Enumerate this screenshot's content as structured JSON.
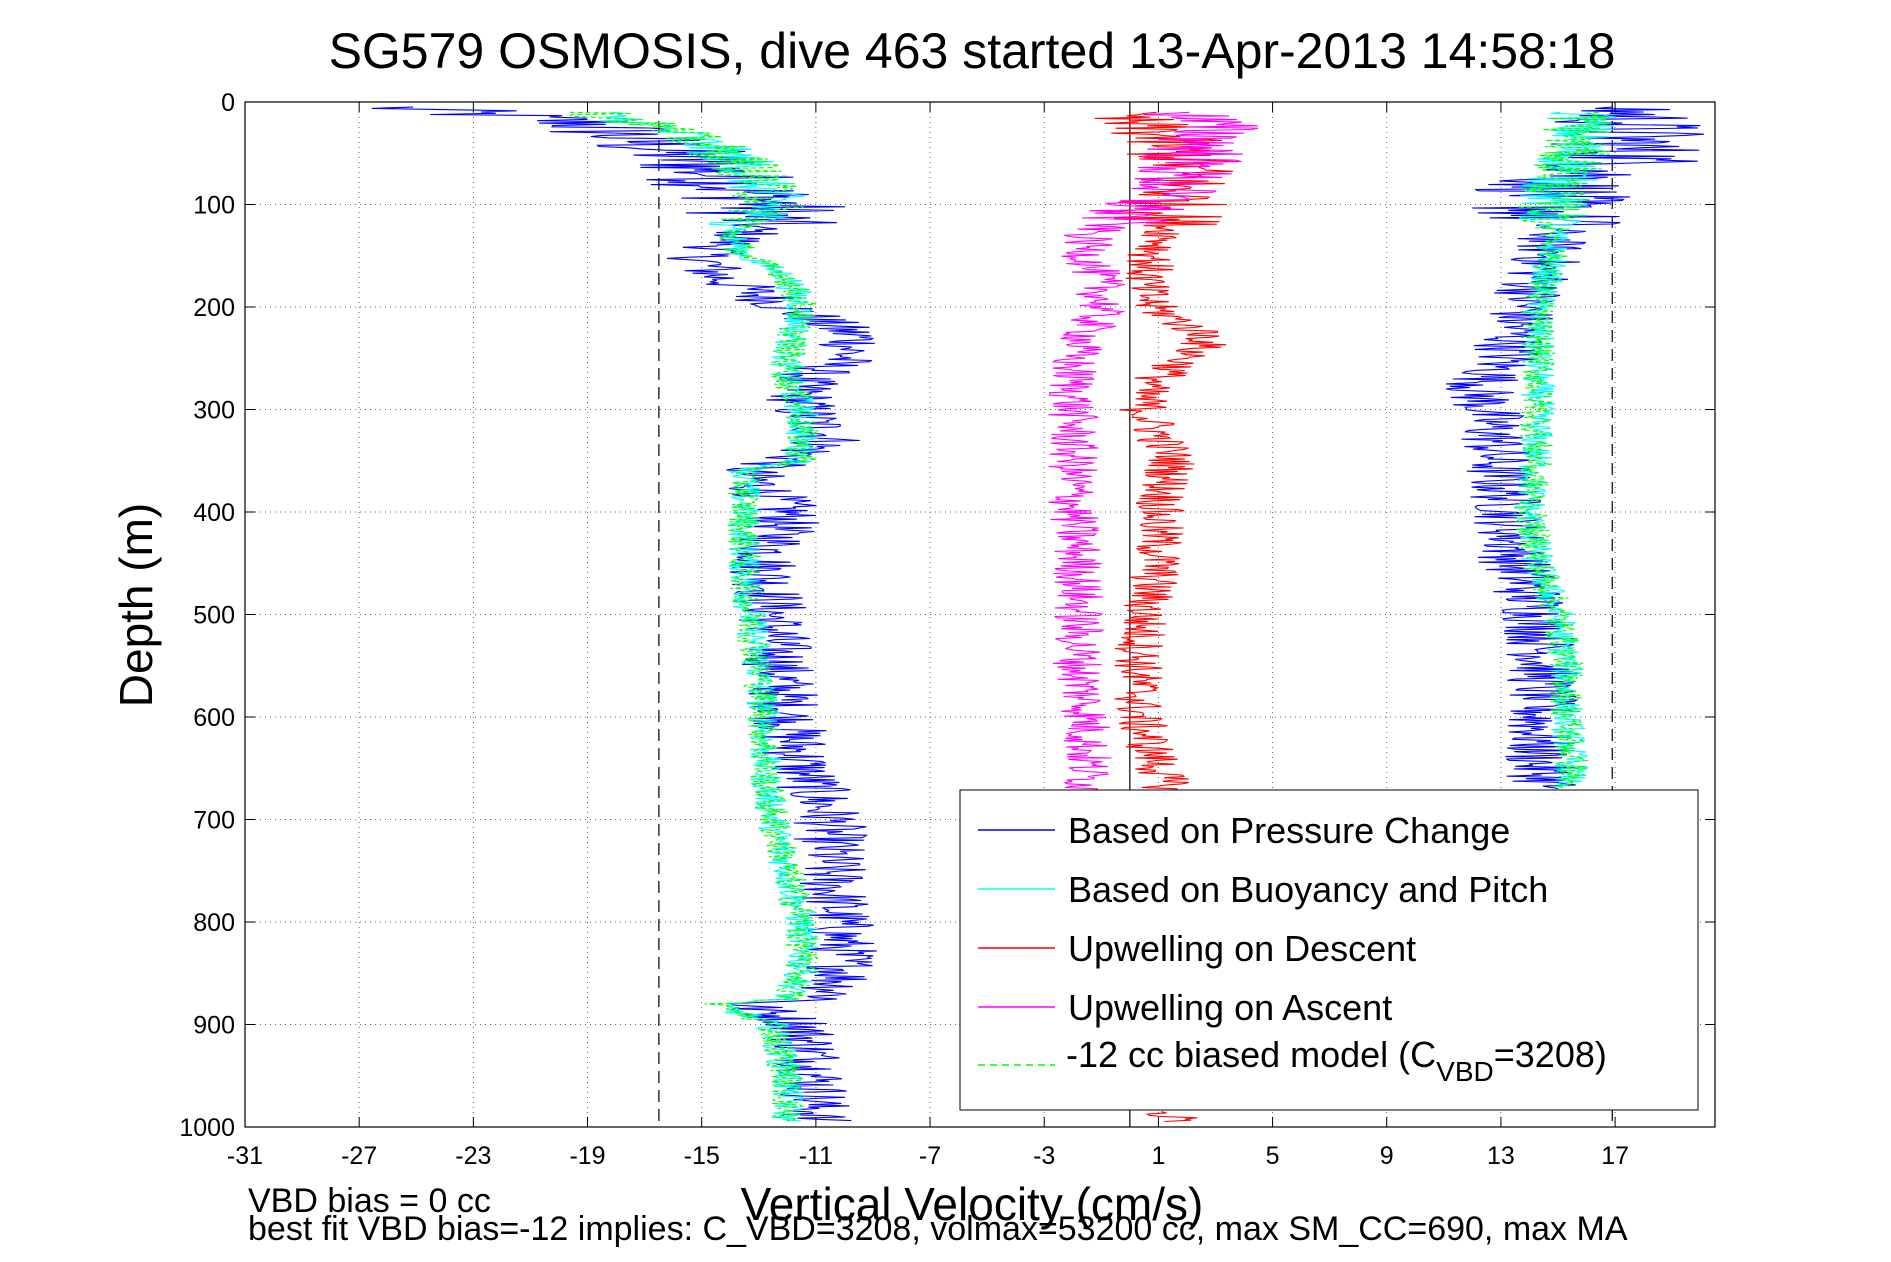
{
  "chart_data": {
    "type": "line",
    "title": "SG579 OSMOSIS, dive 463 started 13-Apr-2013 14:58:18",
    "xlabel": "Vertical Velocity (cm/s)",
    "ylabel": "Depth (m)",
    "xlim": [
      -31,
      20.5
    ],
    "ylim": [
      0,
      1000
    ],
    "y_reversed": true,
    "grid": true,
    "legend_position": "lower-right",
    "x_ticks": [
      "-31",
      "-27",
      "-23",
      "-19",
      "-15",
      "-11",
      "-7",
      "-3",
      "1",
      "5",
      "9",
      "13",
      "17"
    ],
    "y_ticks": [
      "0",
      "100",
      "200",
      "300",
      "400",
      "500",
      "600",
      "700",
      "800",
      "900",
      "1000"
    ],
    "vertical_reference_lines": [
      {
        "x": -16.5,
        "style": "dashed",
        "color": "#000000"
      },
      {
        "x": 16.9,
        "style": "dashed",
        "color": "#000000"
      },
      {
        "x": 0,
        "style": "solid",
        "color": "#000000"
      }
    ],
    "legend": [
      {
        "label": "Based on Pressure Change",
        "color": "#0000ff",
        "style": "solid"
      },
      {
        "label": "Based on Buoyancy and Pitch",
        "color": "#00ffff",
        "style": "solid"
      },
      {
        "label": "Upwelling on Descent",
        "color": "#ff0000",
        "style": "solid"
      },
      {
        "label": "Upwelling on Ascent",
        "color": "#ff00ff",
        "style": "solid"
      },
      {
        "label_main": "-12 cc biased model (C",
        "label_sub": "VBD",
        "label_tail": "=3208)",
        "color": "#00ff00",
        "style": "dashed"
      }
    ],
    "series": [
      {
        "name": "Based on Pressure Change",
        "color": "#0000ff",
        "noise": 1.3,
        "segments": [
          {
            "depth": [
              5,
              20,
              40,
              60,
              80,
              100,
              130,
              150,
              170,
              200,
              230,
              250,
              270,
              300,
              330,
              350,
              360,
              400,
              450,
              500,
              550,
              600,
              650,
              700,
              750,
              800,
              850,
              875,
              880,
              900,
              950,
              995
            ],
            "vel": [
              -26,
              -19,
              -17,
              -15,
              -14,
              -12.5,
              -13.5,
              -15,
              -14.5,
              -12,
              -9.5,
              -10,
              -11.5,
              -11.5,
              -10.5,
              -12,
              -13.5,
              -12,
              -12.8,
              -12.5,
              -12.3,
              -12,
              -11.5,
              -10.5,
              -10.5,
              -10.2,
              -10,
              -10.5,
              -13.5,
              -11.5,
              -11,
              -11
            ]
          },
          {
            "depth": [
              5,
              20,
              40,
              60,
              80,
              100,
              130,
              160,
              200,
              250,
              280,
              300,
              330,
              350,
              400,
              450,
              500,
              550,
              600,
              650,
              670
            ],
            "vel": [
              17.5,
              17.5,
              17.5,
              17.5,
              15,
              14.5,
              14.8,
              14.5,
              13.8,
              13.2,
              12.2,
              12.5,
              12.8,
              12.8,
              13.3,
              13.5,
              14.3,
              14.5,
              14.3,
              14.3,
              14.8
            ]
          }
        ]
      },
      {
        "name": "Based on Buoyancy and Pitch",
        "color": "#00ffff",
        "noise": 0.6,
        "segments": [
          {
            "depth": [
              10,
              20,
              40,
              60,
              80,
              100,
              130,
              150,
              170,
              200,
              250,
              270,
              300,
              330,
              350,
              360,
              400,
              450,
              500,
              550,
              600,
              650,
              700,
              750,
              800,
              850,
              875,
              880,
              900,
              950,
              995
            ],
            "vel": [
              -19,
              -17,
              -15,
              -13.5,
              -13,
              -12.5,
              -14,
              -13.5,
              -12,
              -11.5,
              -12,
              -12,
              -11.5,
              -11.5,
              -11.5,
              -13.5,
              -13.5,
              -13.5,
              -13.3,
              -13,
              -12.8,
              -12.8,
              -12.5,
              -12,
              -11.5,
              -11.5,
              -12,
              -14.5,
              -12.5,
              -12,
              -12
            ]
          },
          {
            "depth": [
              10,
              40,
              60,
              80,
              100,
              150,
              200,
              250,
              300,
              350,
              400,
              450,
              500,
              550,
              600,
              650,
              670
            ],
            "vel": [
              16,
              15.5,
              15.5,
              15,
              14.8,
              14.8,
              14.3,
              14.3,
              14.3,
              14.2,
              14,
              14.3,
              15,
              15.3,
              15.3,
              15.5,
              15.3
            ]
          }
        ]
      },
      {
        "name": "Upwelling on Descent",
        "color": "#ff0000",
        "noise": 0.9,
        "segments": [
          {
            "depth": [
              10,
              30,
              60,
              100,
              130,
              150,
              180,
              200,
              230,
              250,
              280,
              300,
              350,
              400,
              450,
              500,
              550,
              600,
              650,
              680
            ],
            "vel": [
              -1,
              1,
              2,
              1.5,
              1.3,
              0.8,
              0.5,
              0.8,
              2.8,
              2,
              0.5,
              0.5,
              1.5,
              1,
              1,
              0.5,
              0.3,
              0.3,
              1,
              1.5
            ]
          },
          {
            "depth": [
              985,
              995
            ],
            "vel": [
              1,
              2
            ]
          }
        ]
      },
      {
        "name": "Upwelling on Ascent",
        "color": "#ff00ff",
        "noise": 0.9,
        "segments": [
          {
            "depth": [
              10,
              30,
              60,
              80,
              100,
              130,
              150,
              180,
              200,
              250,
              300,
              350,
              400,
              450,
              500,
              550,
              600,
              650,
              680
            ],
            "vel": [
              2,
              3,
              2,
              1.5,
              0.5,
              -1.5,
              -1.5,
              -1,
              -1,
              -2,
              -2,
              -2,
              -2,
              -1.8,
              -1.8,
              -1.8,
              -1.5,
              -1.5,
              -1.5
            ]
          }
        ]
      },
      {
        "name": "-12 cc biased model (CVBD=3208)",
        "color": "#00ff00",
        "dashed": true,
        "noise": 0.6,
        "segments": [
          {
            "depth": [
              10,
              20,
              40,
              60,
              80,
              100,
              130,
              150,
              170,
              200,
              250,
              270,
              300,
              330,
              350,
              360,
              400,
              450,
              500,
              550,
              600,
              650,
              700,
              750,
              800,
              850,
              875,
              880,
              900,
              950,
              995
            ],
            "vel": [
              -19,
              -17,
              -15,
              -13.5,
              -13,
              -12.5,
              -14,
              -13.5,
              -12,
              -11.5,
              -12,
              -12,
              -11.5,
              -11.5,
              -11.5,
              -13.5,
              -13.5,
              -13.5,
              -13.3,
              -13,
              -12.8,
              -12.8,
              -12.5,
              -12,
              -11.5,
              -11.5,
              -12,
              -14.5,
              -12.5,
              -12,
              -12
            ]
          },
          {
            "depth": [
              10,
              40,
              60,
              80,
              100,
              150,
              200,
              250,
              300,
              350,
              400,
              450,
              500,
              550,
              600,
              650,
              670
            ],
            "vel": [
              16,
              15.5,
              15.5,
              15,
              14.8,
              14.8,
              14.3,
              14.3,
              14.3,
              14.2,
              14,
              14.3,
              15,
              15.3,
              15.3,
              15.5,
              15.3
            ]
          }
        ]
      }
    ]
  },
  "footer": {
    "line1": "VBD bias = 0 cc",
    "line2": "best fit VBD bias=-12 implies: C_VBD=3208, volmax=53200 cc, max SM_CC=690, max MA"
  }
}
